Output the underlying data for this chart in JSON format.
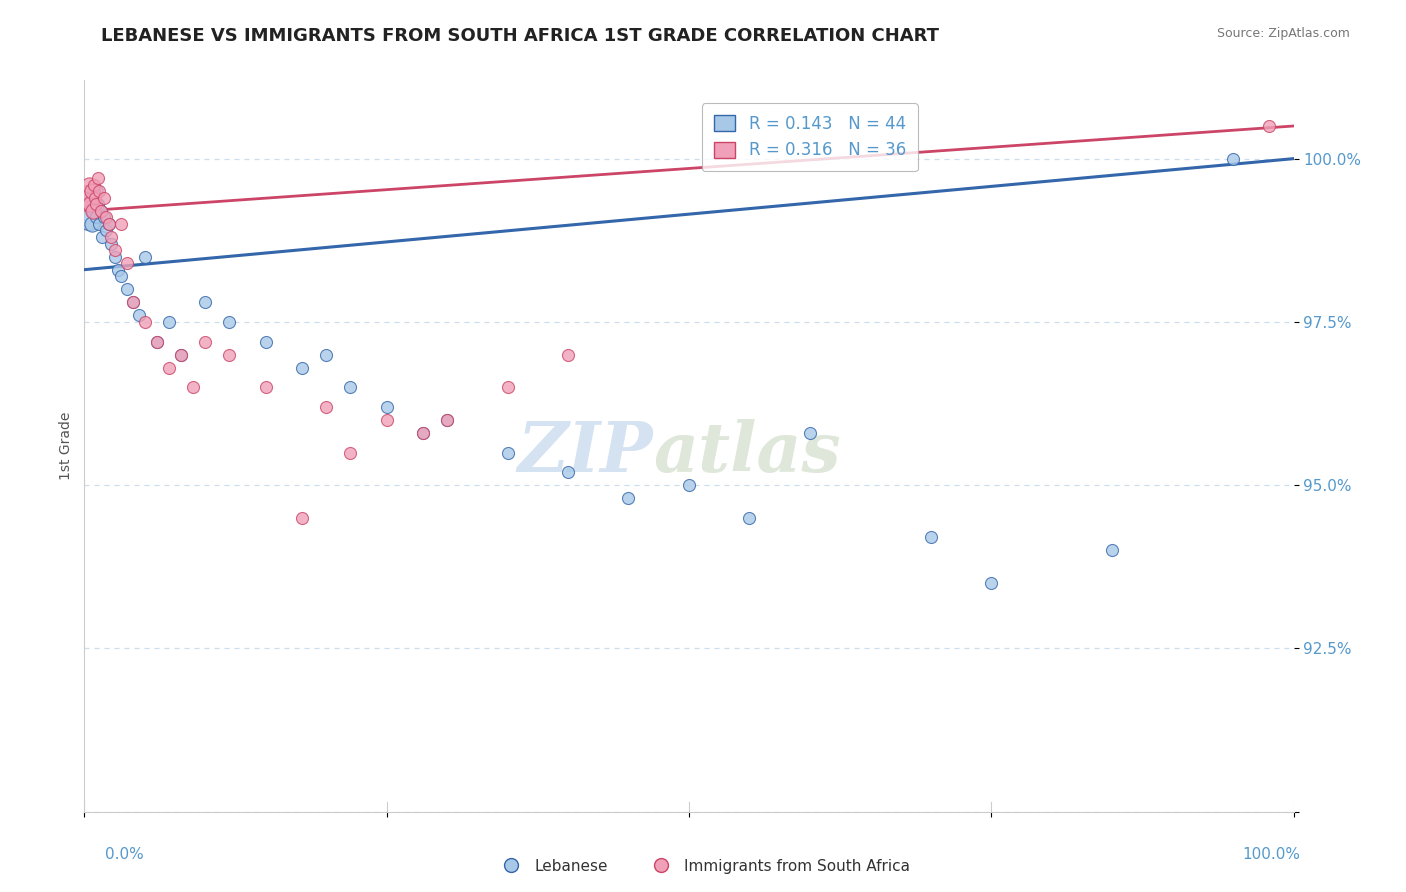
{
  "title": "LEBANESE VS IMMIGRANTS FROM SOUTH AFRICA 1ST GRADE CORRELATION CHART",
  "source": "Source: ZipAtlas.com",
  "ylabel": "1st Grade",
  "yticks": [
    90.0,
    92.5,
    95.0,
    97.5,
    100.0
  ],
  "ytick_labels": [
    "",
    "92.5%",
    "95.0%",
    "97.5%",
    "100.0%"
  ],
  "xlim": [
    0.0,
    100.0
  ],
  "ylim": [
    90.0,
    101.2
  ],
  "blue_color": "#a8c8e8",
  "pink_color": "#f0a0b8",
  "blue_line_color": "#3366aa",
  "pink_line_color": "#cc4466",
  "watermark_zip": "ZIP",
  "watermark_atlas": "atlas",
  "watermark_color_zip": "#b8cfe8",
  "watermark_color_atlas": "#c8d8c0",
  "legend_r1": "R = 0.143",
  "legend_n1": "N = 44",
  "legend_r2": "R = 0.316",
  "legend_n2": "N = 36",
  "legend_labels": [
    "Lebanese",
    "Immigrants from South Africa"
  ],
  "blue_scatter_x": [
    0.4,
    0.5,
    0.6,
    0.7,
    0.8,
    0.9,
    1.0,
    1.1,
    1.2,
    1.4,
    1.5,
    1.6,
    1.8,
    2.0,
    2.2,
    2.5,
    2.8,
    3.0,
    3.5,
    4.0,
    4.5,
    5.0,
    6.0,
    7.0,
    8.0,
    10.0,
    12.0,
    15.0,
    18.0,
    20.0,
    22.0,
    25.0,
    28.0,
    30.0,
    35.0,
    40.0,
    45.0,
    50.0,
    55.0,
    60.0,
    70.0,
    75.0,
    85.0,
    95.0
  ],
  "blue_scatter_y": [
    99.1,
    99.3,
    99.0,
    99.4,
    99.2,
    99.5,
    99.1,
    99.3,
    99.0,
    99.2,
    98.8,
    99.1,
    98.9,
    99.0,
    98.7,
    98.5,
    98.3,
    98.2,
    98.0,
    97.8,
    97.6,
    98.5,
    97.2,
    97.5,
    97.0,
    97.8,
    97.5,
    97.2,
    96.8,
    97.0,
    96.5,
    96.2,
    95.8,
    96.0,
    95.5,
    95.2,
    94.8,
    95.0,
    94.5,
    95.8,
    94.2,
    93.5,
    94.0,
    100.0
  ],
  "pink_scatter_x": [
    0.3,
    0.4,
    0.5,
    0.6,
    0.7,
    0.8,
    0.9,
    1.0,
    1.1,
    1.2,
    1.4,
    1.6,
    1.8,
    2.0,
    2.2,
    2.5,
    3.0,
    3.5,
    4.0,
    5.0,
    6.0,
    7.0,
    8.0,
    9.0,
    10.0,
    12.0,
    15.0,
    18.0,
    20.0,
    22.0,
    25.0,
    28.0,
    30.0,
    35.0,
    40.0,
    98.0
  ],
  "pink_scatter_y": [
    99.4,
    99.6,
    99.3,
    99.5,
    99.2,
    99.6,
    99.4,
    99.3,
    99.7,
    99.5,
    99.2,
    99.4,
    99.1,
    99.0,
    98.8,
    98.6,
    99.0,
    98.4,
    97.8,
    97.5,
    97.2,
    96.8,
    97.0,
    96.5,
    97.2,
    97.0,
    96.5,
    94.5,
    96.2,
    95.5,
    96.0,
    95.8,
    96.0,
    96.5,
    97.0,
    100.5
  ],
  "blue_trend_x0": 0,
  "blue_trend_y0": 98.3,
  "blue_trend_x1": 100,
  "blue_trend_y1": 100.0,
  "pink_trend_x0": 0,
  "pink_trend_y0": 99.2,
  "pink_trend_x1": 100,
  "pink_trend_y1": 100.5,
  "grid_color": "#ccddee",
  "tick_color": "#5599cc",
  "axis_color": "#cccccc"
}
